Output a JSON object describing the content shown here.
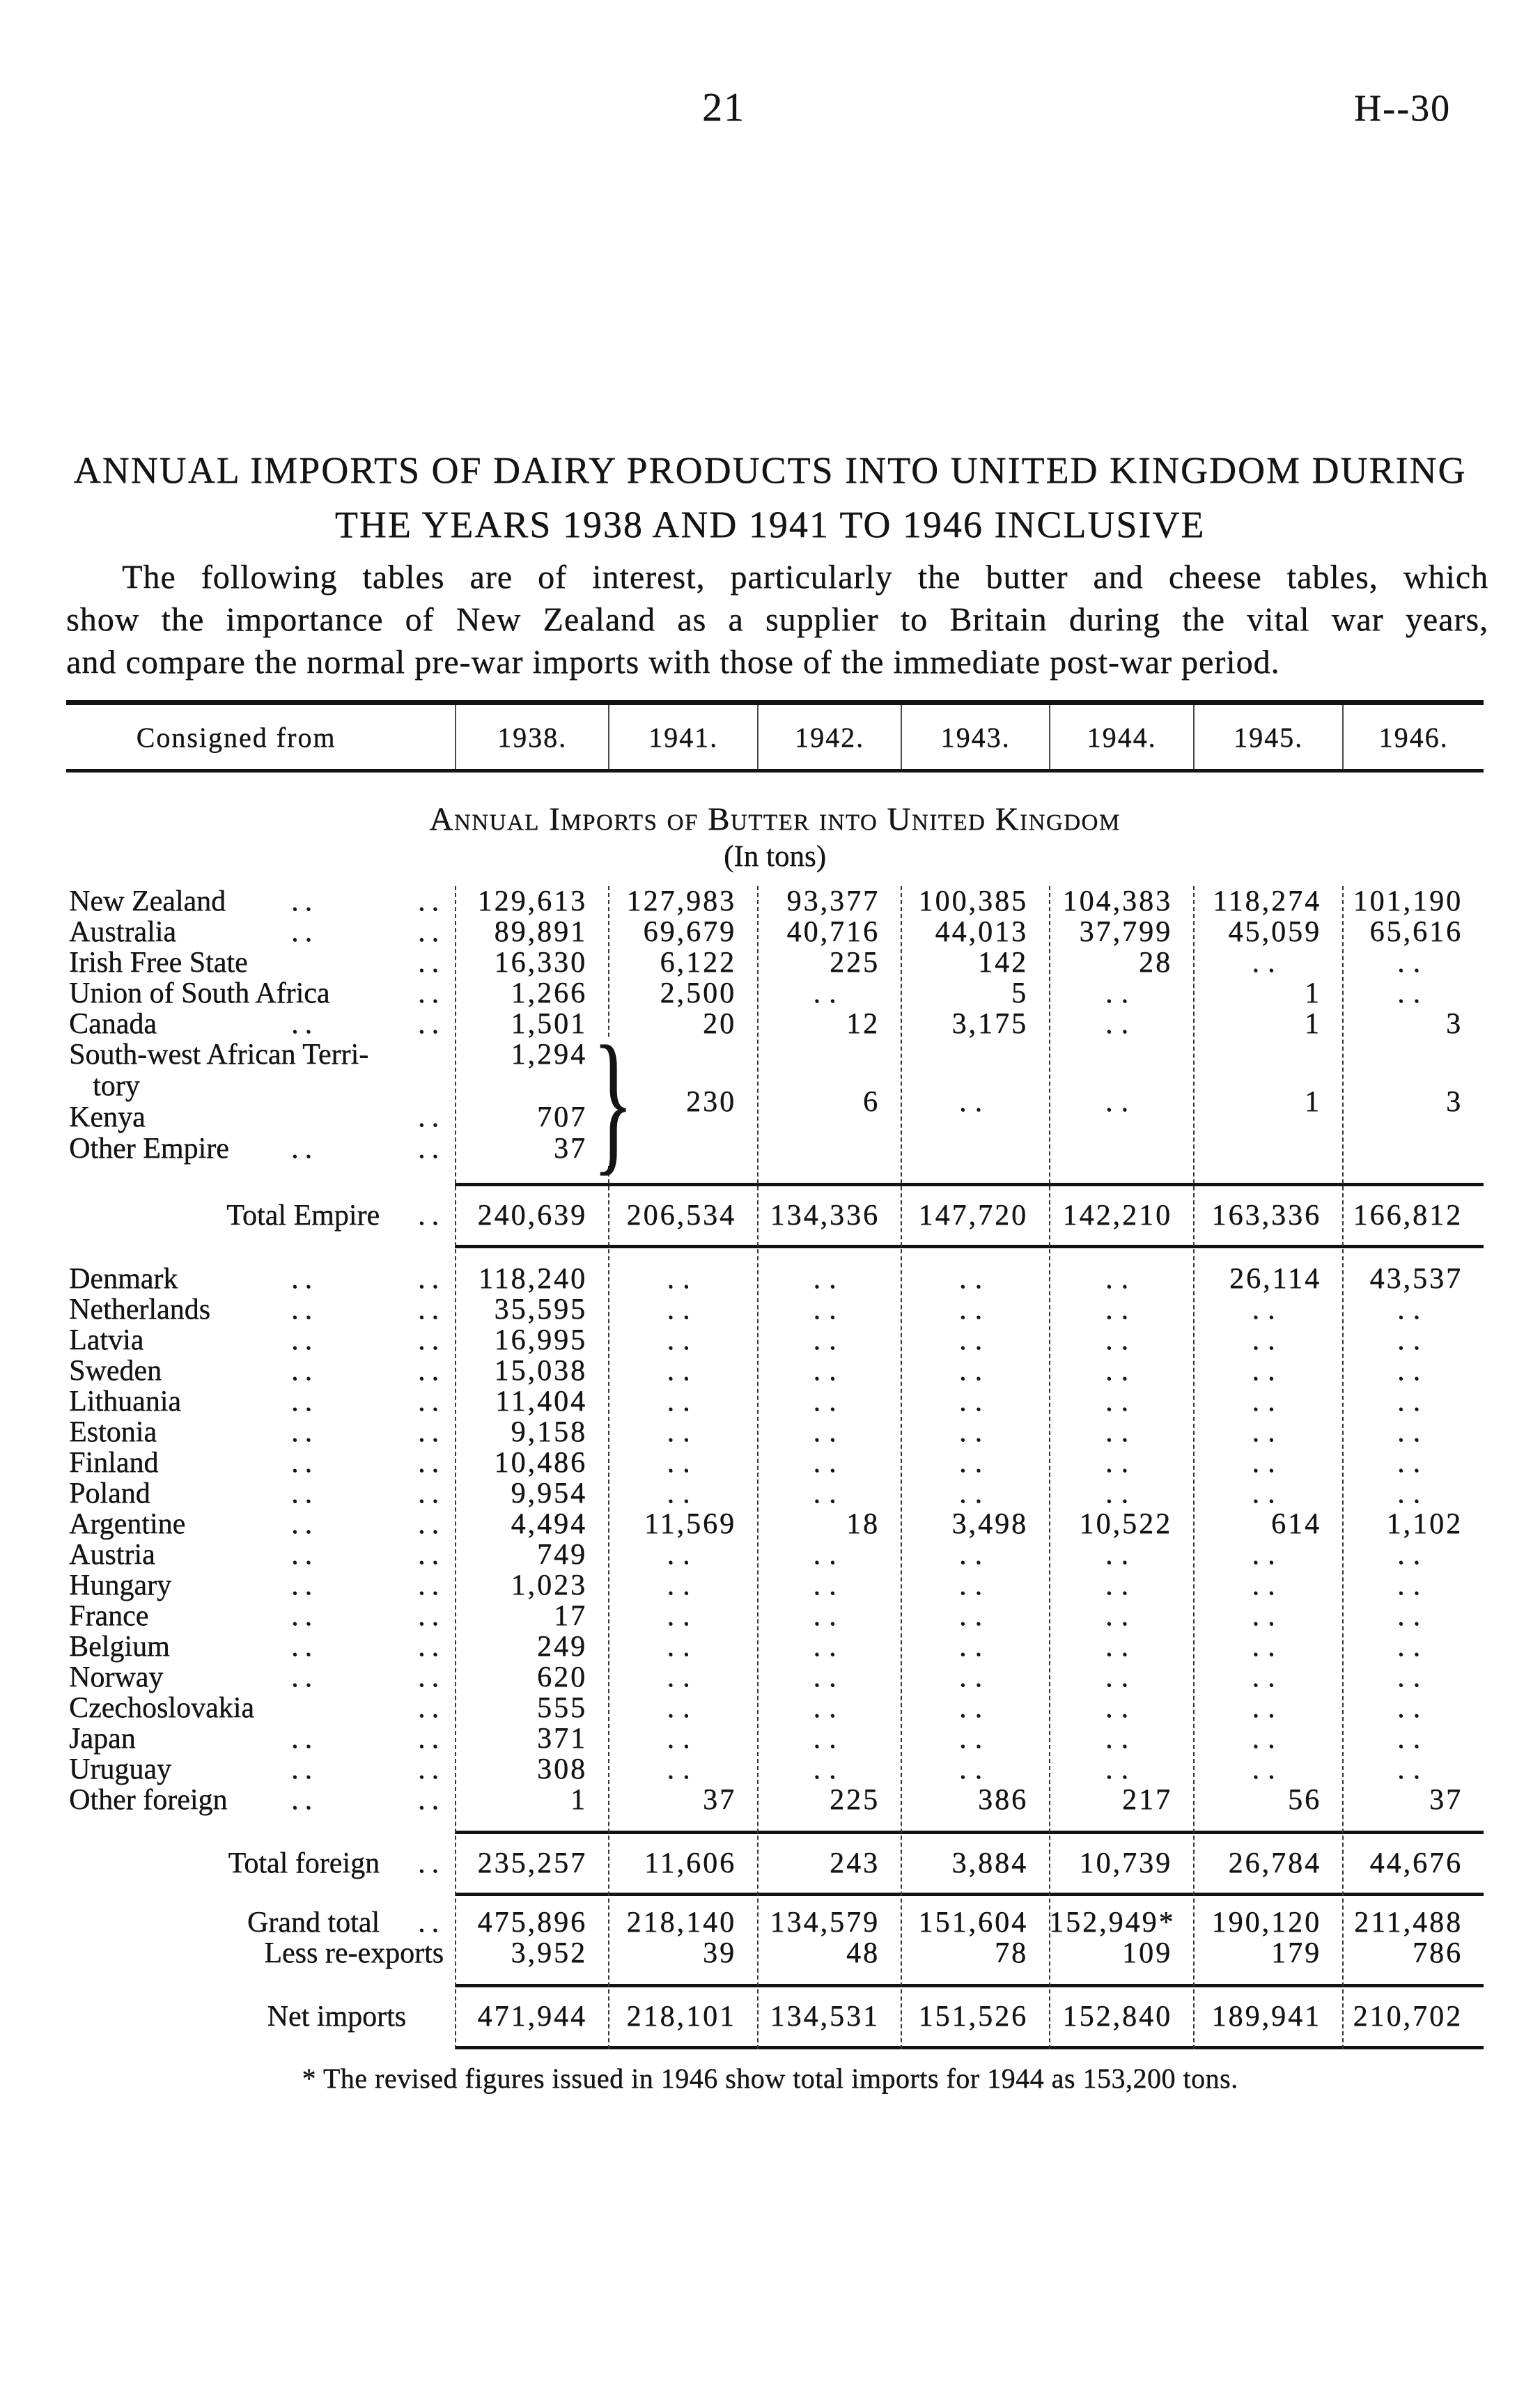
{
  "page": {
    "number": "21",
    "code": "H--30"
  },
  "title": {
    "line1": "ANNUAL IMPORTS OF DAIRY PRODUCTS INTO UNITED KINGDOM DURING",
    "line2": "THE YEARS 1938 AND 1941 TO 1946 INCLUSIVE"
  },
  "intro_lines": [
    "The following tables are of interest, particularly the butter and cheese tables, which",
    "show the importance of New Zealand as a supplier to Britain during the vital war years,",
    "and compare the normal pre-war imports with those of the immediate post-war period."
  ],
  "table": {
    "consigned_label": "Consigned from",
    "years": [
      "1938.",
      "1941.",
      "1942.",
      "1943.",
      "1944.",
      "1945.",
      "1946."
    ],
    "subtitle": "Annual Imports of Butter into United Kingdom",
    "unit": "(In tons)",
    "empire_rows": [
      {
        "label": "New Zealand",
        "d1": true,
        "d2": true,
        "v": [
          "129,613",
          "127,983",
          "93,377",
          "100,385",
          "104,383",
          "118,274",
          "101,190"
        ]
      },
      {
        "label": "Australia",
        "d1": true,
        "d2": true,
        "v": [
          "89,891",
          "69,679",
          "40,716",
          "44,013",
          "37,799",
          "45,059",
          "65,616"
        ]
      },
      {
        "label": "Irish Free State",
        "d1": false,
        "d2": true,
        "v": [
          "16,330",
          "6,122",
          "225",
          "142",
          "28",
          "..",
          ".."
        ]
      },
      {
        "label": "Union of South Africa",
        "d1": false,
        "d2": true,
        "v": [
          "1,266",
          "2,500",
          "..",
          "5",
          "..",
          "1",
          ".."
        ]
      },
      {
        "label": "Canada",
        "d1": true,
        "d2": true,
        "v": [
          "1,501",
          "20",
          "12",
          "3,175",
          "..",
          "1",
          "3"
        ]
      }
    ],
    "brace_group": {
      "rows": [
        {
          "label": "South-west African Terri-",
          "v1938": "1,294"
        },
        {
          "label": "tory",
          "indent": true,
          "v1938": ""
        },
        {
          "label": "Kenya",
          "d2": true,
          "v1938": "707"
        },
        {
          "label": "Other Empire",
          "d1": true,
          "d2": true,
          "v1938": "37"
        }
      ],
      "shared": [
        "230",
        "6",
        "..",
        "..",
        "1",
        "3"
      ]
    },
    "total_empire": {
      "label": "Total Empire",
      "v": [
        "240,639",
        "206,534",
        "134,336",
        "147,720",
        "142,210",
        "163,336",
        "166,812"
      ]
    },
    "foreign_rows": [
      {
        "label": "Denmark",
        "d1": true,
        "d2": true,
        "v": [
          "118,240",
          "..",
          "..",
          "..",
          "..",
          "26,114",
          "43,537"
        ]
      },
      {
        "label": "Netherlands",
        "d1": true,
        "d2": true,
        "v": [
          "35,595",
          "..",
          "..",
          "..",
          "..",
          "..",
          ".."
        ]
      },
      {
        "label": "Latvia",
        "d1": true,
        "d2": true,
        "v": [
          "16,995",
          "..",
          "..",
          "..",
          "..",
          "..",
          ".."
        ]
      },
      {
        "label": "Sweden",
        "d1": true,
        "d2": true,
        "v": [
          "15,038",
          "..",
          "..",
          "..",
          "..",
          "..",
          ".."
        ]
      },
      {
        "label": "Lithuania",
        "d1": true,
        "d2": true,
        "v": [
          "11,404",
          "..",
          "..",
          "..",
          "..",
          "..",
          ".."
        ]
      },
      {
        "label": "Estonia",
        "d1": true,
        "d2": true,
        "v": [
          "9,158",
          "..",
          "..",
          "..",
          "..",
          "..",
          ".."
        ]
      },
      {
        "label": "Finland",
        "d1": true,
        "d2": true,
        "v": [
          "10,486",
          "..",
          "..",
          "..",
          "..",
          "..",
          ".."
        ]
      },
      {
        "label": "Poland",
        "d1": true,
        "d2": true,
        "v": [
          "9,954",
          "..",
          "..",
          "..",
          "..",
          "..",
          ".."
        ]
      },
      {
        "label": "Argentine",
        "d1": true,
        "d2": true,
        "v": [
          "4,494",
          "11,569",
          "18",
          "3,498",
          "10,522",
          "614",
          "1,102"
        ]
      },
      {
        "label": "Austria",
        "d1": true,
        "d2": true,
        "v": [
          "749",
          "..",
          "..",
          "..",
          "..",
          "..",
          ".."
        ]
      },
      {
        "label": "Hungary",
        "d1": true,
        "d2": true,
        "v": [
          "1,023",
          "..",
          "..",
          "..",
          "..",
          "..",
          ".."
        ]
      },
      {
        "label": "France",
        "d1": true,
        "d2": true,
        "v": [
          "17",
          "..",
          "..",
          "..",
          "..",
          "..",
          ".."
        ]
      },
      {
        "label": "Belgium",
        "d1": true,
        "d2": true,
        "v": [
          "249",
          "..",
          "..",
          "..",
          "..",
          "..",
          ".."
        ]
      },
      {
        "label": "Norway",
        "d1": true,
        "d2": true,
        "v": [
          "620",
          "..",
          "..",
          "..",
          "..",
          "..",
          ".."
        ]
      },
      {
        "label": "Czechoslovakia",
        "d1": false,
        "d2": true,
        "v": [
          "555",
          "..",
          "..",
          "..",
          "..",
          "..",
          ".."
        ]
      },
      {
        "label": "Japan",
        "d1": true,
        "d2": true,
        "v": [
          "371",
          "..",
          "..",
          "..",
          "..",
          "..",
          ".."
        ]
      },
      {
        "label": "Uruguay",
        "d1": true,
        "d2": true,
        "v": [
          "308",
          "..",
          "..",
          "..",
          "..",
          "..",
          ".."
        ]
      },
      {
        "label": "Other foreign",
        "d1": true,
        "d2": true,
        "v": [
          "1",
          "37",
          "225",
          "386",
          "217",
          "56",
          "37"
        ]
      }
    ],
    "total_foreign": {
      "label": "Total foreign",
      "v": [
        "235,257",
        "11,606",
        "243",
        "3,884",
        "10,739",
        "26,784",
        "44,676"
      ]
    },
    "grand_total": {
      "label": "Grand total",
      "v": [
        "475,896",
        "218,140",
        "134,579",
        "151,604",
        "152,949*",
        "190,120",
        "211,488"
      ]
    },
    "less_reexports": {
      "label": "Less re-exports",
      "v": [
        "3,952",
        "39",
        "48",
        "78",
        "109",
        "179",
        "786"
      ]
    },
    "net_imports": {
      "label": "Net imports",
      "v": [
        "471,944",
        "218,101",
        "134,531",
        "151,526",
        "152,840",
        "189,941",
        "210,702"
      ]
    }
  },
  "footnote": "* The revised figures issued in 1946 show total imports for 1944 as 153,200 tons."
}
